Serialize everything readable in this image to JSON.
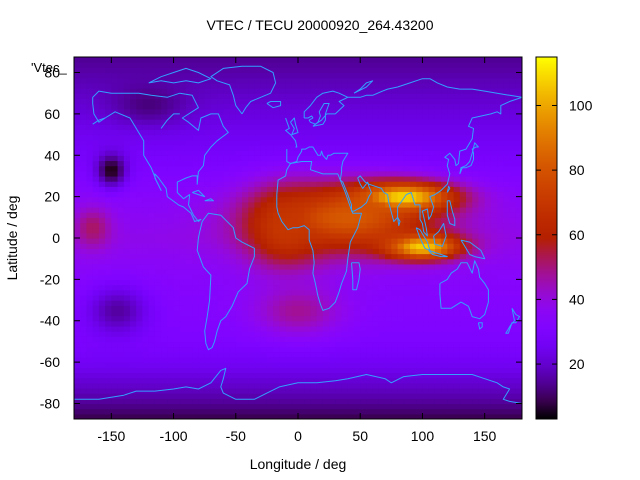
{
  "chart_data": {
    "type": "heatmap",
    "title": "VTEC / TECU 20000920_264.43200",
    "xlabel": "Longitude / deg",
    "ylabel": "Latitude / deg",
    "series_key": "'Vtec_",
    "xlim": [
      -180,
      180
    ],
    "ylim": [
      -87.5,
      87.5
    ],
    "x_ticks": [
      -150,
      -100,
      -50,
      0,
      50,
      100,
      150
    ],
    "y_ticks": [
      -80,
      -60,
      -40,
      -20,
      0,
      20,
      40,
      60,
      80
    ],
    "colorbar": {
      "min": 3,
      "max": 115,
      "ticks": [
        20,
        40,
        60,
        80,
        100
      ],
      "palette": "black-blue-purple-red-orange-yellow (gnuplot pm3d)"
    },
    "grid": false,
    "lat_bins": [
      -87.5,
      -85,
      -80,
      -75,
      -70,
      -65,
      -60,
      -55,
      -50,
      -45,
      -40,
      -35,
      -30,
      -25,
      -20,
      -15,
      -10,
      -5,
      0,
      5,
      10,
      15,
      20,
      25,
      30,
      35,
      40,
      45,
      50,
      55,
      60,
      65,
      70,
      75,
      80,
      85,
      87.5
    ],
    "lon_bins": [
      -180,
      -170,
      -160,
      -150,
      -140,
      -130,
      -120,
      -110,
      -100,
      -90,
      -80,
      -70,
      -60,
      -50,
      -40,
      -30,
      -20,
      -10,
      0,
      10,
      20,
      30,
      40,
      50,
      60,
      70,
      80,
      90,
      100,
      110,
      120,
      130,
      140,
      150,
      160,
      170,
      180
    ],
    "features": {
      "background_by_lat": [
        {
          "lat": -87.5,
          "vtec": 8
        },
        {
          "lat": -80,
          "vtec": 14
        },
        {
          "lat": -70,
          "vtec": 20
        },
        {
          "lat": -60,
          "vtec": 26
        },
        {
          "lat": -50,
          "vtec": 30
        },
        {
          "lat": -40,
          "vtec": 32
        },
        {
          "lat": -20,
          "vtec": 34
        },
        {
          "lat": 0,
          "vtec": 38
        },
        {
          "lat": 20,
          "vtec": 34
        },
        {
          "lat": 40,
          "vtec": 28
        },
        {
          "lat": 60,
          "vtec": 22
        },
        {
          "lat": 80,
          "vtec": 16
        },
        {
          "lat": 87.5,
          "vtec": 14
        }
      ],
      "peaks": [
        {
          "lon": 85,
          "lat": 20,
          "vtec": 110,
          "lon_width": 40,
          "lat_width": 7
        },
        {
          "lon": 100,
          "lat": -4,
          "vtec": 108,
          "lon_width": 30,
          "lat_width": 6
        },
        {
          "lon": 40,
          "lat": 10,
          "vtec": 82,
          "lon_width": 70,
          "lat_width": 16
        },
        {
          "lon": -10,
          "lat": 5,
          "vtec": 70,
          "lon_width": 30,
          "lat_width": 18
        },
        {
          "lon": 0,
          "lat": -35,
          "vtec": 48,
          "lon_width": 35,
          "lat_width": 12
        },
        {
          "lon": -165,
          "lat": 5,
          "vtec": 52,
          "lon_width": 15,
          "lat_width": 10
        }
      ],
      "minima": [
        {
          "lon": -150,
          "lat": 33,
          "vtec": 4,
          "lon_width": 12,
          "lat_width": 8
        },
        {
          "lon": -145,
          "lat": -35,
          "vtec": 15,
          "lon_width": 25,
          "lat_width": 12
        },
        {
          "lon": -120,
          "lat": 65,
          "vtec": 12,
          "lon_width": 30,
          "lat_width": 10
        }
      ]
    },
    "colors": {
      "coastline": "#33a0ff",
      "frame": "#000000"
    }
  }
}
